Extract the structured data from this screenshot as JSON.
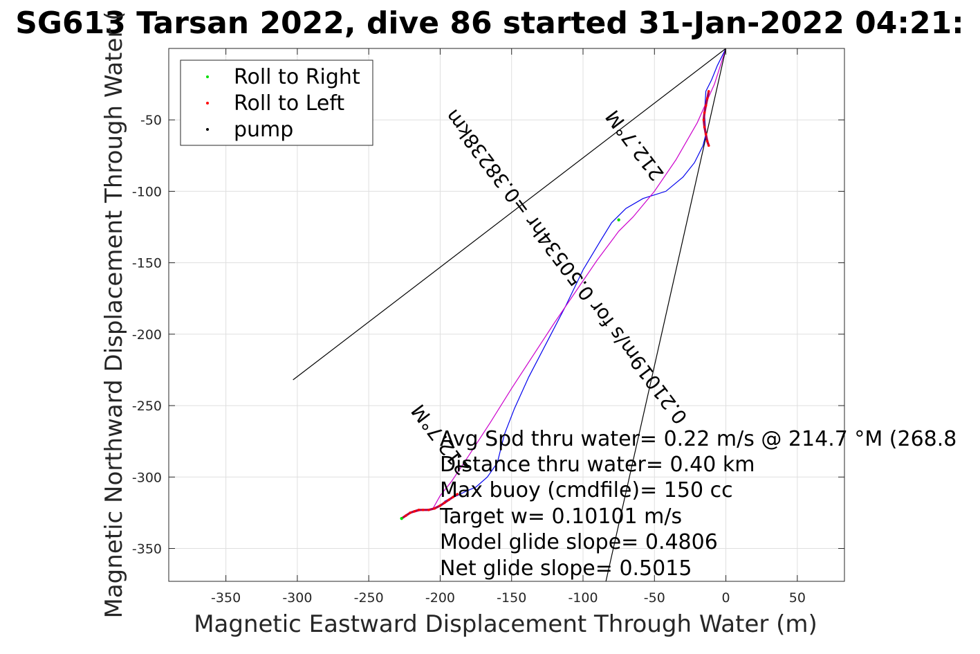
{
  "chart_data": {
    "type": "line",
    "title": "SG613 Tarsan 2022, dive 86 started 31-Jan-2022 04:21:",
    "xlabel": "Magnetic Eastward Displacement Through Water (m)",
    "ylabel": "Magnetic Northward Displacement Through Water (",
    "xlim": [
      -390,
      83
    ],
    "ylim": [
      -373,
      0
    ],
    "xticks": [
      -350,
      -300,
      -250,
      -200,
      -150,
      -100,
      -50,
      0,
      50
    ],
    "yticks": [
      -50,
      -100,
      -150,
      -200,
      -250,
      -300,
      -350
    ],
    "xtick_labels": [
      "-350",
      "-300",
      "-250",
      "-200",
      "-150",
      "-100",
      "-50",
      "0",
      "50"
    ],
    "ytick_labels": [
      "-50",
      "-100",
      "-150",
      "-200",
      "-250",
      "-300",
      "-350"
    ],
    "grid": true,
    "legend_position": "top-left",
    "legend": [
      {
        "label": "Roll to Right",
        "color": "#00dd00"
      },
      {
        "label": "Roll to Left",
        "color": "#ff0000"
      },
      {
        "label": "pump",
        "color": "#000000"
      }
    ],
    "series": [
      {
        "color": "#0000ee",
        "x": [
          0,
          -6,
          -10,
          -14,
          -15,
          -14,
          -16,
          -22,
          -30,
          -42,
          -58,
          -70,
          -80,
          -88,
          -100,
          -112,
          -125,
          -138,
          -148,
          -155,
          -160,
          -167,
          -175,
          -182,
          -188,
          -193,
          -197
        ],
        "y": [
          0,
          -12,
          -22,
          -30,
          -45,
          -60,
          -68,
          -80,
          -90,
          -100,
          -105,
          -112,
          -122,
          -135,
          -155,
          -180,
          -205,
          -230,
          -252,
          -270,
          -290,
          -300,
          -307,
          -310,
          -313,
          -315,
          -317
        ]
      },
      {
        "color": "#cc00cc",
        "x": [
          0,
          -8,
          -20,
          -35,
          -50,
          -65,
          -75,
          -90,
          -105,
          -120,
          -135,
          -150,
          -165,
          -180,
          -192,
          -200,
          -205,
          -212,
          -220,
          -227
        ],
        "y": [
          0,
          -25,
          -52,
          -78,
          -100,
          -118,
          -128,
          -148,
          -170,
          -192,
          -215,
          -238,
          -262,
          -285,
          -303,
          -313,
          -322,
          -323,
          -325,
          -329
        ]
      },
      {
        "color": "#000000",
        "x": [
          0,
          -303
        ],
        "y": [
          0,
          -232
        ]
      },
      {
        "color": "#000000",
        "x": [
          0,
          -84
        ],
        "y": [
          0,
          -373
        ]
      }
    ],
    "marker_segments": [
      {
        "x": [
          -12,
          -13,
          -14,
          -15,
          -15.5,
          -15,
          -14,
          -13,
          -12
        ],
        "y": [
          -30,
          -35,
          -40,
          -45,
          -50,
          -55,
          -60,
          -65,
          -68
        ]
      },
      {
        "x": [
          -188,
          -191,
          -194,
          -197,
          -200,
          -204,
          -208,
          -212,
          -215,
          -218,
          -221,
          -224,
          -227
        ],
        "y": [
          -312,
          -314,
          -316,
          -318,
          -320,
          -322,
          -323,
          -323,
          -323,
          -324,
          -325,
          -327,
          -329
        ]
      }
    ],
    "green_points": [
      {
        "x": -75,
        "y": -120
      },
      {
        "x": -227,
        "y": -329
      }
    ],
    "rotated_labels": [
      {
        "text": "0.21019m/s for 0.50534hr =0.38238km",
        "x": -108,
        "y": -150,
        "angle": -127
      },
      {
        "text": "212.7°M",
        "x": -60,
        "y": -65,
        "angle": -127
      },
      {
        "text": "212.7°M",
        "x": -196,
        "y": -271,
        "angle": -127
      }
    ],
    "annotations": [
      "Avg Spd thru water=  0.22 m/s @ 214.7 °M (268.8",
      "Distance thru water=  0.40 km",
      "Max buoy (cmdfile)= 150 cc",
      "Target w= 0.10101 m/s",
      "Model glide slope= 0.4806",
      "Net glide slope= 0.5015"
    ]
  }
}
